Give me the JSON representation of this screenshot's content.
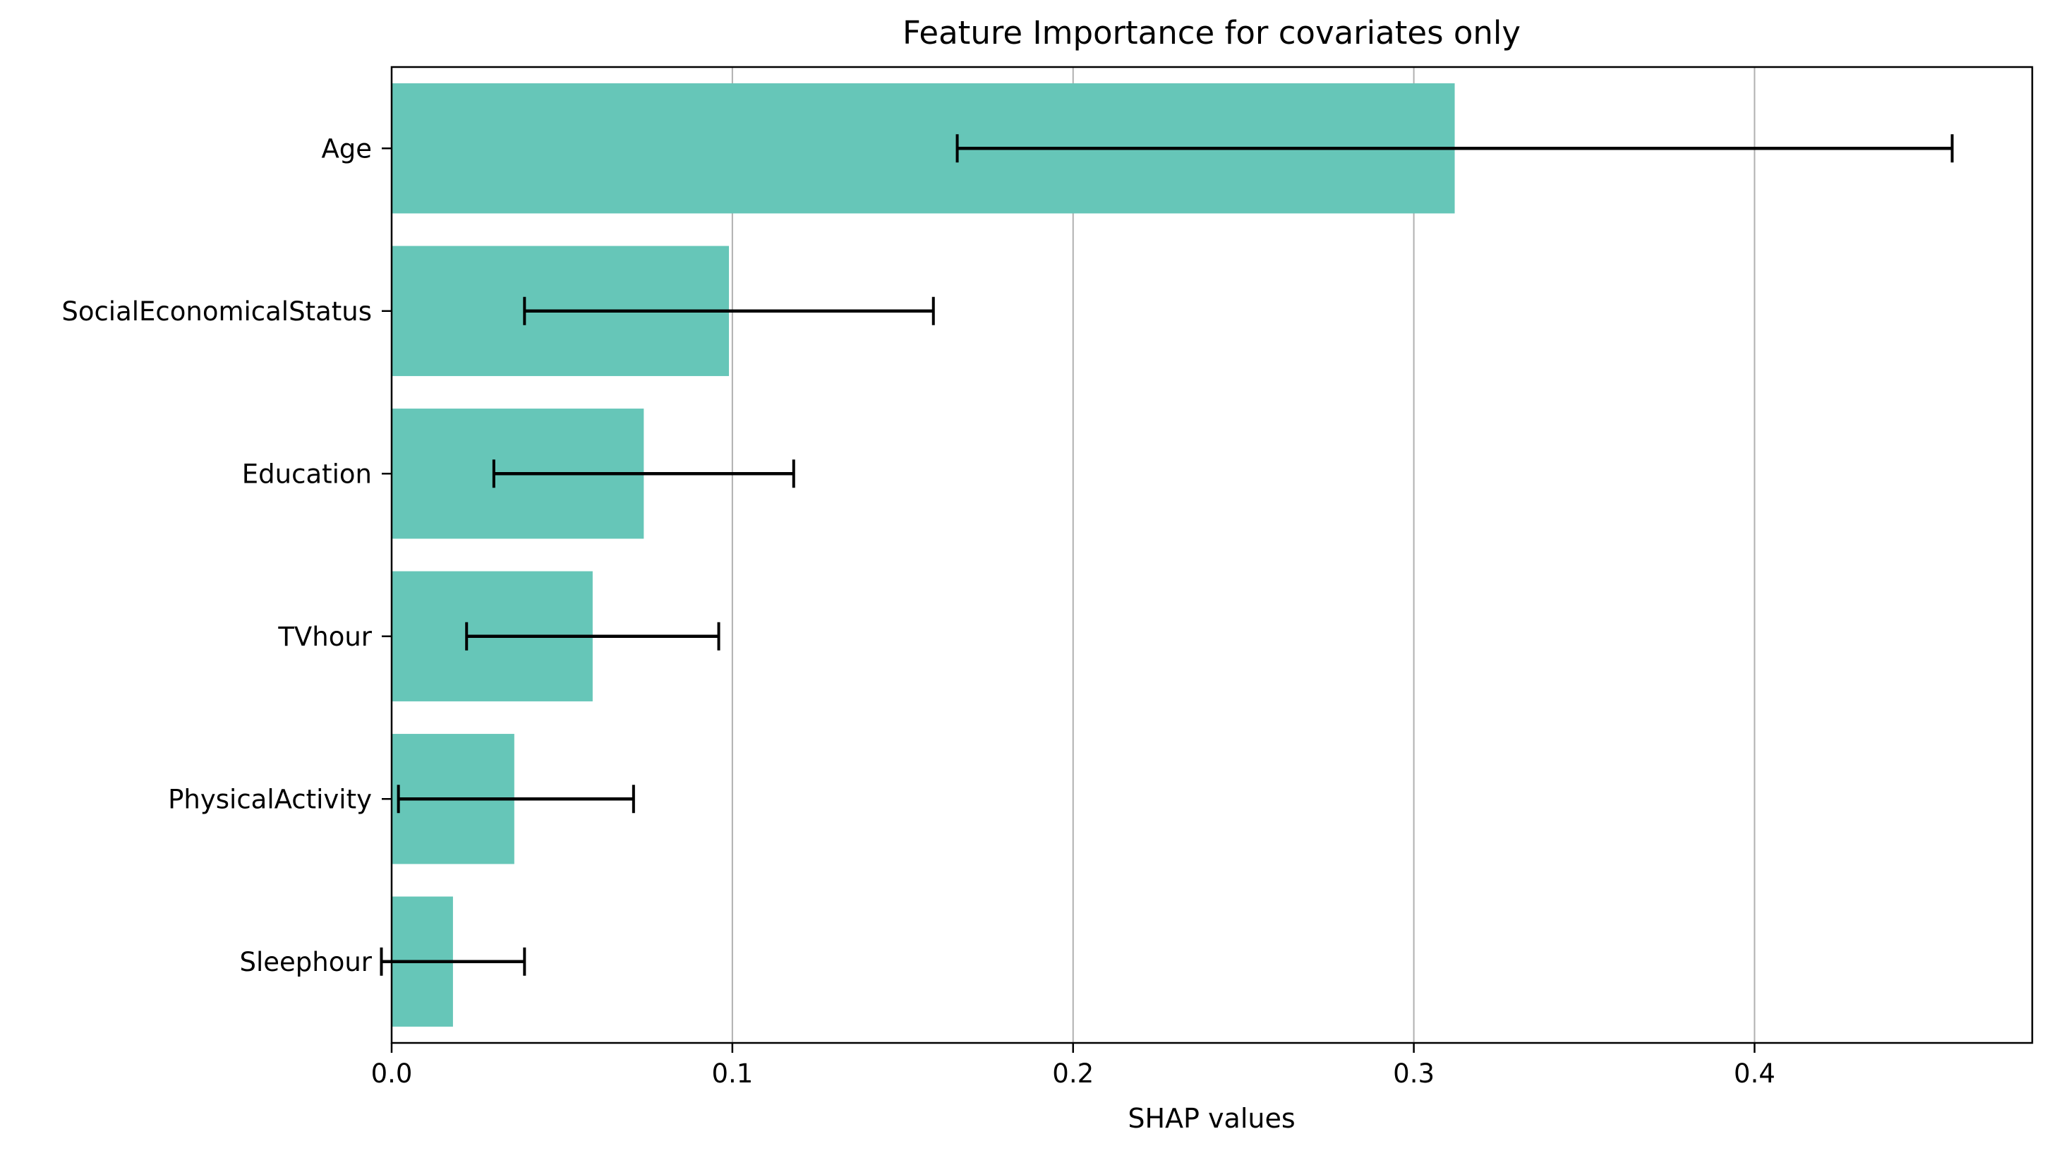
{
  "chart_data": {
    "type": "bar",
    "orientation": "horizontal",
    "title": "Feature Importance for covariates only",
    "xlabel": "SHAP values",
    "ylabel": "",
    "categories": [
      "Age",
      "SocialEconomicalStatus",
      "Education",
      "TVhour",
      "PhysicalActivity",
      "Sleephour"
    ],
    "values": [
      0.312,
      0.099,
      0.074,
      0.059,
      0.036,
      0.018
    ],
    "error_low": [
      0.166,
      0.039,
      0.03,
      0.022,
      0.002,
      -0.003
    ],
    "error_high": [
      0.458,
      0.159,
      0.118,
      0.096,
      0.071,
      0.039
    ],
    "xlim": [
      0,
      0.4815
    ],
    "xticks": [
      0.0,
      0.1,
      0.2,
      0.3,
      0.4
    ],
    "xtick_labels": [
      "0.0",
      "0.1",
      "0.2",
      "0.3",
      "0.4"
    ],
    "grid": "vertical",
    "legend": "none",
    "bar_color": "#66c6b8",
    "error_color": "#000000",
    "grid_color": "#b0b0b0"
  }
}
